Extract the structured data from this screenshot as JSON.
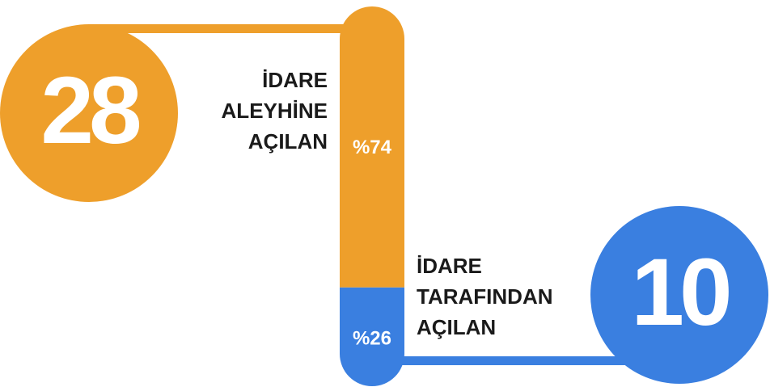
{
  "chart_data": {
    "type": "stacked-bar",
    "series": [
      {
        "label": [
          "İDARE",
          "ALEYHİNE",
          "AÇILAN"
        ],
        "count": 28,
        "values": [
          74
        ],
        "value_labels": [
          "%74"
        ],
        "color": "#ee9f2b"
      },
      {
        "label": [
          "İDARE",
          "TARAFINDAN",
          "AÇILAN"
        ],
        "count": 10,
        "values": [
          26
        ],
        "value_labels": [
          "%26"
        ],
        "color": "#3a7fe0"
      }
    ]
  }
}
